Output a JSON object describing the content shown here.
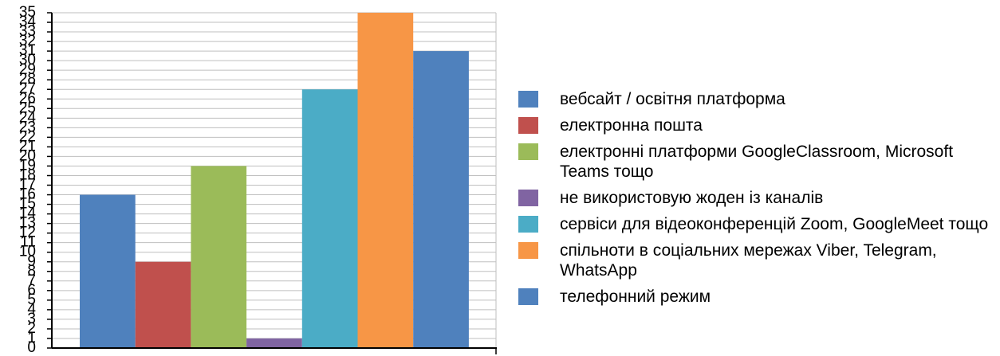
{
  "chart_data": {
    "type": "bar",
    "categories": [
      "вебсайт / освітня платформа",
      "електронна пошта",
      "електронні платформи GoogleClassroom, Microsoft Teams тощо",
      "не використовую жоден із каналів",
      "сервіси для відеоконференцій Zoom, GoogleMeet тощо",
      "спільноти в соціальних мережах Viber, Telegram, WhatsApp",
      "телефонний режим"
    ],
    "values": [
      16,
      9,
      19,
      1,
      27,
      35,
      31
    ],
    "colors": [
      "#4f81bd",
      "#c0504d",
      "#9bbb59",
      "#8064a2",
      "#4bacc6",
      "#f79646",
      "#4f81bd"
    ],
    "ylim": [
      0,
      35
    ],
    "yticks": [
      "0",
      "1",
      "2",
      "3",
      "4",
      "5",
      "6",
      "7",
      "8",
      "9",
      "10",
      "11",
      "12",
      "13",
      "14",
      "15",
      "16",
      "17",
      "18",
      "19",
      "20",
      "21",
      "22",
      "23",
      "24",
      "25",
      "26",
      "27",
      "28",
      "29",
      "30",
      "31",
      "32",
      "33",
      "34",
      "35"
    ],
    "grid": true,
    "legend_position": "right",
    "title": "",
    "xlabel": "",
    "ylabel": ""
  },
  "legend": {
    "items": [
      {
        "label": "вебсайт / освітня платформа",
        "color": "#4f81bd"
      },
      {
        "label": "електронна пошта",
        "color": "#c0504d"
      },
      {
        "label": "електронні платформи GoogleClassroom, Microsoft Teams тощо",
        "color": "#9bbb59"
      },
      {
        "label": "не використовую жоден із каналів",
        "color": "#8064a2"
      },
      {
        "label": "сервіси для відеоконференцій Zoom, GoogleMeet тощо",
        "color": "#4bacc6"
      },
      {
        "label": "спільноти в соціальних мережах Viber, Telegram, WhatsApp",
        "color": "#f79646"
      },
      {
        "label": "телефонний режим",
        "color": "#4f81bd"
      }
    ]
  }
}
